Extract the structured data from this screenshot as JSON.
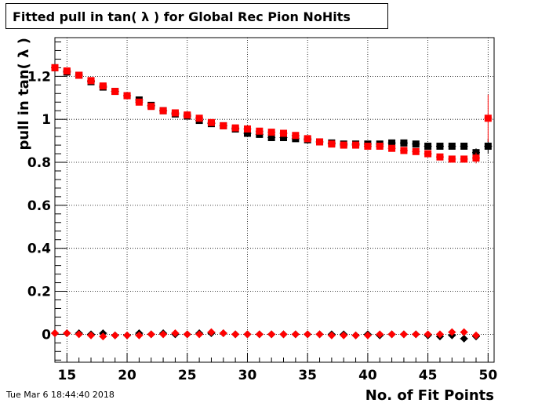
{
  "title": "Fitted pull in tan( λ ) for Global Rec Pion NoHits",
  "datestamp": "Tue Mar  6 18:44:40 2018",
  "chart_data": {
    "type": "scatter",
    "title": "Fitted pull in tan( λ ) for Global Rec Pion NoHits",
    "xlabel": "No. of Fit Points",
    "ylabel": "pull in tan( λ )",
    "xlim": [
      14,
      50.5
    ],
    "ylim": [
      -0.13,
      1.38
    ],
    "grid": true,
    "x_ticks": [
      15,
      20,
      25,
      30,
      35,
      40,
      45,
      50
    ],
    "y_ticks": [
      0,
      0.2,
      0.4,
      0.6,
      0.8,
      1,
      1.2
    ],
    "x_tick_labels": [
      "15",
      "20",
      "25",
      "30",
      "35",
      "40",
      "45",
      "50"
    ],
    "y_tick_labels": [
      "0",
      "0.2",
      "0.4",
      "0.6",
      "0.8",
      "1",
      "1.2"
    ],
    "x": [
      14,
      15,
      16,
      17,
      18,
      19,
      20,
      21,
      22,
      23,
      24,
      25,
      26,
      27,
      28,
      29,
      30,
      31,
      32,
      33,
      34,
      35,
      36,
      37,
      38,
      39,
      40,
      41,
      42,
      43,
      44,
      45,
      46,
      47,
      48,
      49,
      50
    ],
    "series": [
      {
        "marker": "square",
        "color": "#000000",
        "values": [
          1.24,
          1.22,
          1.205,
          1.175,
          1.15,
          1.13,
          1.11,
          1.09,
          1.065,
          1.04,
          1.025,
          1.015,
          0.995,
          0.98,
          0.97,
          0.955,
          0.935,
          0.93,
          0.915,
          0.915,
          0.91,
          0.905,
          0.895,
          0.89,
          0.885,
          0.885,
          0.885,
          0.885,
          0.89,
          0.89,
          0.885,
          0.875,
          0.875,
          0.875,
          0.875,
          0.845,
          0.875
        ],
        "errors": [
          0.01,
          0.01,
          0.01,
          0.01,
          0.01,
          0.01,
          0.01,
          0.01,
          0.01,
          0.01,
          0.01,
          0.01,
          0.01,
          0.01,
          0.01,
          0.01,
          0.01,
          0.01,
          0.01,
          0.01,
          0.01,
          0.01,
          0.01,
          0.01,
          0.01,
          0.01,
          0.01,
          0.01,
          0.01,
          0.01,
          0.012,
          0.012,
          0.012,
          0.014,
          0.016,
          0.02,
          0.035
        ]
      },
      {
        "marker": "square",
        "color": "#ff0000",
        "values": [
          1.24,
          1.225,
          1.205,
          1.18,
          1.155,
          1.13,
          1.11,
          1.08,
          1.06,
          1.04,
          1.03,
          1.02,
          1.005,
          0.985,
          0.97,
          0.96,
          0.955,
          0.945,
          0.94,
          0.935,
          0.925,
          0.91,
          0.895,
          0.885,
          0.88,
          0.88,
          0.875,
          0.875,
          0.865,
          0.855,
          0.85,
          0.84,
          0.825,
          0.815,
          0.815,
          0.82,
          1.005
        ],
        "errors": [
          0.01,
          0.01,
          0.01,
          0.01,
          0.01,
          0.01,
          0.01,
          0.01,
          0.01,
          0.01,
          0.01,
          0.01,
          0.01,
          0.01,
          0.01,
          0.01,
          0.01,
          0.01,
          0.01,
          0.01,
          0.01,
          0.01,
          0.01,
          0.01,
          0.01,
          0.01,
          0.01,
          0.01,
          0.01,
          0.01,
          0.012,
          0.012,
          0.012,
          0.014,
          0.016,
          0.025,
          0.11
        ]
      },
      {
        "marker": "diamond",
        "color": "#000000",
        "values": [
          0.005,
          0.005,
          0.005,
          0.0,
          0.005,
          -0.005,
          -0.005,
          0.005,
          0.0,
          0.005,
          0.0,
          0.0,
          0.005,
          0.005,
          0.005,
          0.0,
          0.0,
          0.0,
          0.0,
          0.0,
          0.0,
          0.0,
          0.0,
          0.0,
          0.0,
          -0.005,
          0.0,
          -0.005,
          0.0,
          0.0,
          0.0,
          -0.005,
          -0.01,
          -0.005,
          -0.02,
          -0.01,
          null
        ],
        "errors": [
          0.005,
          0.005,
          0.005,
          0.005,
          0.005,
          0.005,
          0.005,
          0.005,
          0.005,
          0.005,
          0.005,
          0.005,
          0.005,
          0.005,
          0.005,
          0.005,
          0.005,
          0.005,
          0.005,
          0.005,
          0.005,
          0.005,
          0.005,
          0.005,
          0.005,
          0.005,
          0.005,
          0.005,
          0.005,
          0.005,
          0.005,
          0.006,
          0.006,
          0.006,
          0.008,
          0.008,
          0
        ]
      },
      {
        "marker": "diamond",
        "color": "#ff0000",
        "values": [
          0.005,
          0.005,
          0.0,
          -0.005,
          -0.01,
          -0.005,
          -0.005,
          -0.005,
          0.0,
          0.0,
          0.005,
          0.0,
          0.0,
          0.01,
          0.005,
          0.0,
          0.0,
          0.0,
          0.0,
          0.0,
          0.0,
          0.0,
          0.0,
          -0.005,
          -0.005,
          -0.005,
          -0.005,
          0.0,
          0.0,
          0.0,
          0.0,
          0.0,
          0.0,
          0.01,
          0.01,
          -0.005,
          null
        ],
        "errors": [
          0.005,
          0.005,
          0.005,
          0.005,
          0.005,
          0.005,
          0.005,
          0.005,
          0.005,
          0.005,
          0.005,
          0.005,
          0.005,
          0.005,
          0.005,
          0.005,
          0.005,
          0.005,
          0.005,
          0.005,
          0.005,
          0.005,
          0.005,
          0.005,
          0.005,
          0.005,
          0.005,
          0.005,
          0.005,
          0.005,
          0.005,
          0.006,
          0.006,
          0.006,
          0.008,
          0.008,
          0
        ]
      }
    ]
  }
}
